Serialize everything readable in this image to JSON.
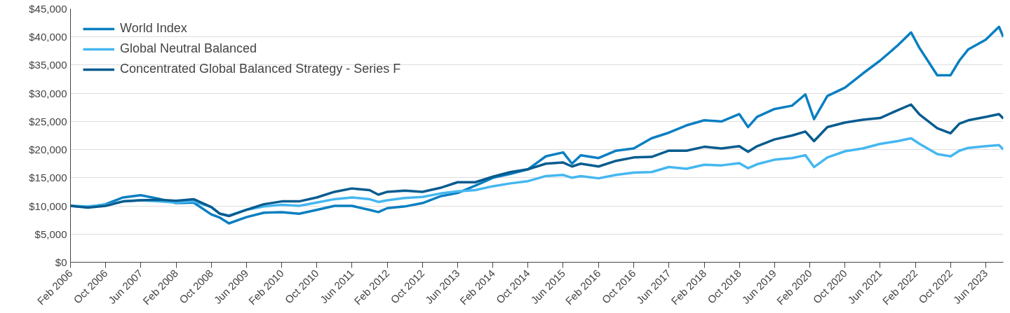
{
  "chart_data": {
    "type": "line",
    "x": [
      "2006-02",
      "2006-06",
      "2006-10",
      "2007-02",
      "2007-06",
      "2007-10",
      "2008-02",
      "2008-06",
      "2008-10",
      "2008-12",
      "2009-02",
      "2009-06",
      "2009-10",
      "2010-02",
      "2010-06",
      "2010-10",
      "2011-02",
      "2011-06",
      "2011-10",
      "2011-12",
      "2012-02",
      "2012-06",
      "2012-10",
      "2013-02",
      "2013-06",
      "2013-10",
      "2014-02",
      "2014-06",
      "2014-10",
      "2015-02",
      "2015-06",
      "2015-08",
      "2015-10",
      "2016-02",
      "2016-06",
      "2016-10",
      "2017-02",
      "2017-06",
      "2017-10",
      "2018-02",
      "2018-06",
      "2018-10",
      "2018-12",
      "2019-02",
      "2019-06",
      "2019-10",
      "2020-01",
      "2020-03",
      "2020-06",
      "2020-10",
      "2021-02",
      "2021-06",
      "2021-10",
      "2022-01",
      "2022-03",
      "2022-07",
      "2022-10",
      "2022-12",
      "2023-02",
      "2023-06",
      "2023-09",
      "2023-10"
    ],
    "series": [
      {
        "name": "World Index",
        "color": "#0a7fc2",
        "values": [
          10000,
          9800,
          10300,
          11500,
          11900,
          11300,
          10500,
          10600,
          8500,
          7900,
          6900,
          8000,
          8800,
          8900,
          8600,
          9300,
          10000,
          10000,
          9300,
          8900,
          9600,
          9900,
          10500,
          11700,
          12300,
          13600,
          15000,
          15700,
          16500,
          18800,
          19500,
          17500,
          19000,
          18500,
          19800,
          20200,
          22000,
          23000,
          24300,
          25200,
          25000,
          26300,
          24000,
          25800,
          27200,
          27800,
          29800,
          25400,
          29500,
          31000,
          33500,
          35800,
          38500,
          40800,
          38000,
          33200,
          33200,
          35800,
          37800,
          39500,
          41800,
          40000
        ]
      },
      {
        "name": "Global Neutral Balanced",
        "color": "#45b7f0",
        "values": [
          10000,
          9900,
          10200,
          10800,
          11000,
          10800,
          10600,
          10800,
          9800,
          8600,
          8300,
          9300,
          9900,
          10200,
          10000,
          10600,
          11200,
          11500,
          11200,
          10700,
          11000,
          11400,
          11600,
          12200,
          12600,
          12800,
          13500,
          14000,
          14400,
          15300,
          15500,
          15000,
          15300,
          14900,
          15500,
          15900,
          16000,
          16900,
          16600,
          17300,
          17200,
          17600,
          16700,
          17400,
          18200,
          18500,
          19000,
          16900,
          18600,
          19700,
          20200,
          21000,
          21500,
          22000,
          21000,
          19200,
          18800,
          19800,
          20300,
          20600,
          20800,
          20000
        ]
      },
      {
        "name": "Concentrated Global Balanced Strategy - Series F",
        "color": "#075c8f",
        "values": [
          10000,
          9700,
          10000,
          10800,
          11000,
          11100,
          10900,
          11200,
          9800,
          8600,
          8200,
          9300,
          10300,
          10800,
          10800,
          11500,
          12500,
          13100,
          12800,
          12000,
          12500,
          12700,
          12500,
          13200,
          14200,
          14200,
          15200,
          16000,
          16500,
          17500,
          17700,
          17000,
          17500,
          17000,
          18000,
          18600,
          18700,
          19800,
          19800,
          20500,
          20200,
          20600,
          19600,
          20600,
          21800,
          22500,
          23200,
          21500,
          24000,
          24800,
          25300,
          25600,
          27000,
          28000,
          26200,
          23800,
          22900,
          24600,
          25200,
          25800,
          26300,
          25500
        ]
      }
    ],
    "xlim": [
      "2006-02",
      "2023-10"
    ],
    "xticks": [
      {
        "value": "2006-02",
        "label": "Feb 2006"
      },
      {
        "value": "2006-10",
        "label": "Oct 2006"
      },
      {
        "value": "2007-06",
        "label": "Jun 2007"
      },
      {
        "value": "2008-02",
        "label": "Feb 2008"
      },
      {
        "value": "2008-10",
        "label": "Oct 2008"
      },
      {
        "value": "2009-06",
        "label": "Jun 2009"
      },
      {
        "value": "2010-02",
        "label": "Feb 2010"
      },
      {
        "value": "2010-10",
        "label": "Oct 2010"
      },
      {
        "value": "2011-06",
        "label": "Jun 2011"
      },
      {
        "value": "2012-02",
        "label": "Feb 2012"
      },
      {
        "value": "2012-10",
        "label": "Oct 2012"
      },
      {
        "value": "2013-06",
        "label": "Jun 2013"
      },
      {
        "value": "2014-02",
        "label": "Feb 2014"
      },
      {
        "value": "2014-10",
        "label": "Oct 2014"
      },
      {
        "value": "2015-06",
        "label": "Jun 2015"
      },
      {
        "value": "2016-02",
        "label": "Feb 2016"
      },
      {
        "value": "2016-10",
        "label": "Oct 2016"
      },
      {
        "value": "2017-06",
        "label": "Jun 2017"
      },
      {
        "value": "2018-02",
        "label": "Feb 2018"
      },
      {
        "value": "2018-10",
        "label": "Oct 2018"
      },
      {
        "value": "2019-06",
        "label": "Jun 2019"
      },
      {
        "value": "2020-02",
        "label": "Feb 2020"
      },
      {
        "value": "2020-10",
        "label": "Oct 2020"
      },
      {
        "value": "2021-06",
        "label": "Jun 2021"
      },
      {
        "value": "2022-02",
        "label": "Feb 2022"
      },
      {
        "value": "2022-10",
        "label": "Oct 2022"
      },
      {
        "value": "2023-06",
        "label": "Jun 2023"
      }
    ],
    "ylim": [
      0,
      45000
    ],
    "yticks": [
      {
        "value": 0,
        "label": "$0"
      },
      {
        "value": 5000,
        "label": "$5,000"
      },
      {
        "value": 10000,
        "label": "$10,000"
      },
      {
        "value": 15000,
        "label": "$15,000"
      },
      {
        "value": 20000,
        "label": "$20,000"
      },
      {
        "value": 25000,
        "label": "$25,000"
      },
      {
        "value": 30000,
        "label": "$30,000"
      },
      {
        "value": 35000,
        "label": "$35,000"
      },
      {
        "value": 40000,
        "label": "$40,000"
      },
      {
        "value": 45000,
        "label": "$45,000"
      }
    ],
    "grid": "y",
    "legend": "top left",
    "line_style": "solid",
    "marker": "none"
  }
}
